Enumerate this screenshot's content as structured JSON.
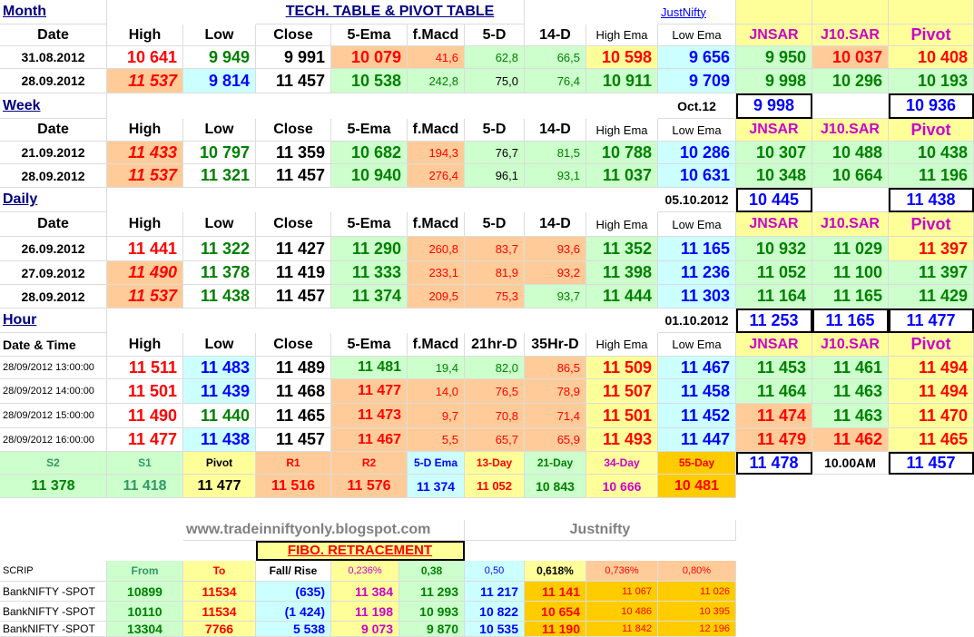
{
  "sheet_title": "TECH. TABLE  & PIVOT TABLE",
  "brand_top": "JustNifty",
  "sections": {
    "month": "Month",
    "week": "Week",
    "daily": "Daily",
    "hour": "Hour"
  },
  "headers": {
    "date": "Date",
    "date_time": "Date & Time",
    "high": "High",
    "low": "Low",
    "close": "Close",
    "ema5": "5-Ema",
    "fmacd": "f.Macd",
    "d5": "5-D",
    "d14": "14-D",
    "hr21": "21hr-D",
    "hr35": "35Hr-D",
    "high_ema": "High Ema",
    "low_ema": "Low Ema",
    "jnsar": "JNSAR",
    "j10sar": "J10.SAR",
    "pivot": "Pivot"
  },
  "month_rows": [
    [
      "31.08.2012",
      "10 641",
      "9 949",
      "9 991",
      "10 079",
      "41,6",
      "62,8",
      "66,5",
      "10 598",
      "9 656",
      "9 950",
      "10 037",
      "10 408"
    ],
    [
      "28.09.2012",
      "11 537",
      "9 814",
      "11 457",
      "10 538",
      "242,8",
      "75,0",
      "76,4",
      "10 911",
      "9 709",
      "9 998",
      "10 296",
      "10 193"
    ]
  ],
  "month_summary": {
    "label": "Oct.12",
    "jnsar": "9 998",
    "pivot": "10 936"
  },
  "week_rows": [
    [
      "21.09.2012",
      "11 433",
      "10 797",
      "11 359",
      "10 682",
      "194,3",
      "76,7",
      "81,5",
      "10 788",
      "10 286",
      "10 307",
      "10 488",
      "10 438"
    ],
    [
      "28.09.2012",
      "11 537",
      "11 321",
      "11 457",
      "10 940",
      "276,4",
      "96,1",
      "93,1",
      "11 037",
      "10 631",
      "10 348",
      "10 664",
      "11 196"
    ]
  ],
  "week_summary": {
    "label": "05.10.2012",
    "jnsar": "10 445",
    "pivot": "11 438"
  },
  "daily_rows": [
    [
      "26.09.2012",
      "11 441",
      "11 322",
      "11 427",
      "11 290",
      "260,8",
      "83,7",
      "93,6",
      "11 352",
      "11 165",
      "10 932",
      "11 029",
      "11 397"
    ],
    [
      "27.09.2012",
      "11 490",
      "11 378",
      "11 419",
      "11 333",
      "233,1",
      "81,9",
      "93,2",
      "11 398",
      "11 236",
      "11 052",
      "11 100",
      "11 397"
    ],
    [
      "28.09.2012",
      "11 537",
      "11 438",
      "11 457",
      "11 374",
      "209,5",
      "75,3",
      "93,7",
      "11 444",
      "11 303",
      "11 164",
      "11 165",
      "11 429"
    ]
  ],
  "daily_summary": {
    "label": "01.10.2012",
    "jnsar": "11 253",
    "j10sar": "11 165",
    "pivot": "11 477"
  },
  "hour_rows": [
    [
      "28/09/2012 13:00:00",
      "11 511",
      "11 483",
      "11 489",
      "11 481",
      "19,4",
      "82,0",
      "86,5",
      "11 509",
      "11 467",
      "11 453",
      "11 461",
      "11 494"
    ],
    [
      "28/09/2012 14:00:00",
      "11 501",
      "11 439",
      "11 468",
      "11 477",
      "14,0",
      "76,5",
      "78,9",
      "11 507",
      "11 458",
      "11 464",
      "11 463",
      "11 494"
    ],
    [
      "28/09/2012 15:00:00",
      "11 490",
      "11 440",
      "11 465",
      "11 473",
      "9,7",
      "70,8",
      "71,4",
      "11 501",
      "11 452",
      "11 474",
      "11 463",
      "11 470"
    ],
    [
      "28/09/2012 16:00:00",
      "11 477",
      "11 438",
      "11 457",
      "11 467",
      "5,5",
      "65,7",
      "65,9",
      "11 493",
      "11 447",
      "11 479",
      "11 462",
      "11 465"
    ]
  ],
  "levels_labels": [
    "S2",
    "S1",
    "Pivot",
    "R1",
    "R2",
    "5-D Ema",
    "13-Day",
    "21-Day",
    "34-Day",
    "55-Day"
  ],
  "levels_values": [
    "11 378",
    "11 418",
    "11 477",
    "11 516",
    "11 576",
    "11 374",
    "11 052",
    "10 843",
    "10 666",
    "10 481"
  ],
  "hour_summary": {
    "jnsar": "11 478",
    "time": "10.00AM",
    "pivot": "11 457"
  },
  "website": "www.tradeinniftyonly.blogspot.com",
  "brand_mid": "Justnifty",
  "fibo": {
    "title": "FIBO. RETRACEMENT",
    "headers": [
      "SCRIP",
      "From",
      "To",
      "Fall/ Rise",
      "0,236%",
      "0,38",
      "0,50",
      "0,618%",
      "0,736%",
      "0,80%"
    ],
    "rows": [
      [
        "BankNIFTY -SPOT",
        "10899",
        "11534",
        "(635)",
        "11 384",
        "11 293",
        "11 217",
        "11 141",
        "11 067",
        "11 026"
      ],
      [
        "BankNIFTY -SPOT",
        "10110",
        "11534",
        "(1 424)",
        "11 198",
        "10 993",
        "10 822",
        "10 654",
        "10 486",
        "10 395"
      ],
      [
        "BankNIFTY -SPOT",
        "13304",
        "7766",
        "5 538",
        "9 073",
        "9 870",
        "10 535",
        "11 190",
        "11 842",
        "12 196"
      ]
    ]
  },
  "colors": {
    "peach": "#ffcc99",
    "light_green": "#ccffcc",
    "light_yellow": "#ffff99",
    "light_cyan": "#ccffff",
    "gold": "#ffcc00",
    "grey": "#c0c0c0"
  }
}
